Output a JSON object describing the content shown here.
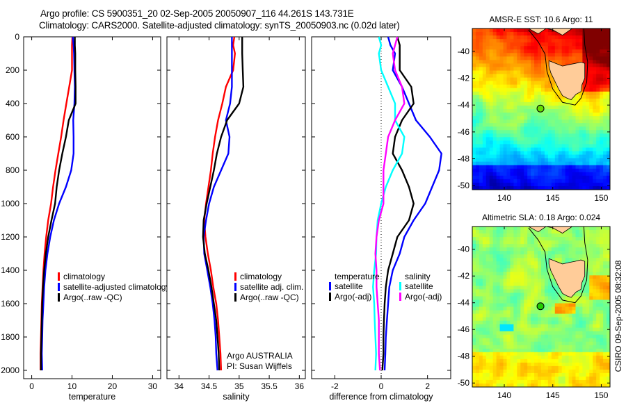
{
  "header": {
    "title_line1": "Argo profile: CS 5900351_20 02-Sep-2005 20050907_116 44.261S 143.731E",
    "title_line2": "Climatology: CARS2000. Satellite-adjusted climatology: synTS_20050903.nc (0.02d later)"
  },
  "side_stamp": "CSIRO 09-Sep-2005 08:32:08",
  "credit": {
    "line1": "Argo AUSTRALIA",
    "line2": "PI: Susan Wijffels"
  },
  "colors": {
    "climatology": "#ff0000",
    "satellite": "#0000ff",
    "argo": "#000000",
    "sal_satellite": "#00ffff",
    "sal_argo": "#ff00ff"
  },
  "chart_data": [
    {
      "type": "line",
      "id": "temperature",
      "title": "",
      "xlabel": "temperature",
      "ylabel": "",
      "xlim": [
        -2,
        32
      ],
      "ylim": [
        2050,
        0
      ],
      "xticks": [
        0,
        10,
        20,
        30
      ],
      "yticks": [
        0,
        200,
        400,
        600,
        800,
        1000,
        1200,
        1400,
        1600,
        1800,
        2000
      ],
      "legend": {
        "placement": "center-left",
        "entries": [
          "climatology",
          "satellite-adjusted climatology",
          "Argo(..raw -QC)"
        ]
      },
      "depth": [
        0,
        50,
        100,
        200,
        300,
        400,
        500,
        600,
        700,
        800,
        900,
        1000,
        1100,
        1200,
        1300,
        1400,
        1500,
        1600,
        1700,
        1800,
        1900,
        2000
      ],
      "series": [
        {
          "name": "climatology",
          "color": "red",
          "values": [
            10.1,
            10.0,
            10.0,
            10.0,
            9.3,
            8.6,
            7.9,
            7.3,
            6.6,
            5.9,
            5.3,
            4.8,
            4.1,
            3.6,
            3.2,
            2.9,
            2.7,
            2.5,
            2.4,
            2.3,
            2.2,
            2.2
          ]
        },
        {
          "name": "satellite",
          "color": "blue",
          "values": [
            10.2,
            10.4,
            10.5,
            10.6,
            10.7,
            10.6,
            10.3,
            10.4,
            10.4,
            9.8,
            8.5,
            6.8,
            5.5,
            4.6,
            3.9,
            3.4,
            3.1,
            2.9,
            2.7,
            2.6,
            2.5,
            2.6
          ]
        },
        {
          "name": "argo",
          "color": "black",
          "values": [
            10.7,
            10.7,
            10.8,
            10.8,
            10.9,
            10.9,
            9.2,
            8.5,
            7.6,
            6.8,
            6.2,
            5.8,
            4.9,
            4.1,
            3.5,
            3.1,
            2.8,
            2.6,
            2.5,
            2.4,
            2.3,
            2.3
          ]
        }
      ]
    },
    {
      "type": "line",
      "id": "salinity",
      "title": "",
      "xlabel": "salinity",
      "ylabel": "",
      "xlim": [
        33.8,
        36.1
      ],
      "ylim": [
        2050,
        0
      ],
      "xticks": [
        34,
        34.5,
        35,
        35.5,
        36
      ],
      "yticks": [
        0,
        200,
        400,
        600,
        800,
        1000,
        1200,
        1400,
        1600,
        1800,
        2000
      ],
      "legend": {
        "placement": "center-right",
        "entries": [
          "climatology",
          "satellite adj. clim.",
          "Argo(..raw -QC)"
        ]
      },
      "depth": [
        0,
        50,
        100,
        200,
        300,
        400,
        500,
        600,
        700,
        800,
        900,
        1000,
        1100,
        1200,
        1300,
        1400,
        1500,
        1600,
        1700,
        1800,
        1900,
        2000
      ],
      "series": [
        {
          "name": "climatology",
          "color": "red",
          "values": [
            34.92,
            34.9,
            34.93,
            34.9,
            34.78,
            34.72,
            34.65,
            34.6,
            34.56,
            34.53,
            34.49,
            34.45,
            34.42,
            34.44,
            34.48,
            34.53,
            34.57,
            34.62,
            34.65,
            34.67,
            34.69,
            34.7
          ]
        },
        {
          "name": "satellite",
          "color": "blue",
          "values": [
            34.88,
            34.88,
            34.88,
            34.88,
            34.88,
            34.85,
            34.78,
            34.84,
            34.82,
            34.7,
            34.58,
            34.5,
            34.45,
            34.41,
            34.42,
            34.47,
            34.52,
            34.56,
            34.59,
            34.61,
            34.62,
            34.64
          ]
        },
        {
          "name": "argo",
          "color": "black",
          "values": [
            35.05,
            35.05,
            35.05,
            35.06,
            35.07,
            35.0,
            34.8,
            34.7,
            34.63,
            34.58,
            34.52,
            34.46,
            34.41,
            34.4,
            34.43,
            34.49,
            34.54,
            34.58,
            34.62,
            34.64,
            34.66,
            34.67
          ]
        }
      ]
    },
    {
      "type": "line",
      "id": "difference",
      "title": "",
      "xlabel": "difference from climatology",
      "ylabel": "",
      "xlim": [
        -3,
        3
      ],
      "ylim": [
        2050,
        0
      ],
      "xticks": [
        -2,
        0,
        2
      ],
      "yticks": [
        0,
        200,
        400,
        600,
        800,
        1000,
        1200,
        1400,
        1600,
        1800,
        2000
      ],
      "zero_line": "dotted",
      "legend": {
        "placement": "center",
        "groups": [
          {
            "heading": "temperature",
            "entries": [
              "satellite",
              "Argo(-adj)"
            ]
          },
          {
            "heading": "salinity",
            "entries": [
              "satellite",
              "Argo(-adj)"
            ]
          }
        ]
      },
      "depth": [
        0,
        50,
        100,
        200,
        300,
        400,
        500,
        600,
        700,
        800,
        900,
        1000,
        1100,
        1200,
        1300,
        1400,
        1500,
        1600,
        1700,
        1800,
        1900,
        2000
      ],
      "series": [
        {
          "name": "temperature satellite",
          "color": "blue",
          "values": [
            0.3,
            0.4,
            0.6,
            0.5,
            0.9,
            1.2,
            1.5,
            2.1,
            2.6,
            2.5,
            2.2,
            1.9,
            1.4,
            1.0,
            0.8,
            0.5,
            0.35,
            0.3,
            0.25,
            0.2,
            0.18,
            0.15
          ]
        },
        {
          "name": "temperature Argo(-adj)",
          "color": "black",
          "values": [
            0.7,
            0.8,
            0.8,
            0.8,
            1.3,
            1.4,
            0.9,
            0.6,
            0.5,
            0.9,
            1.2,
            1.4,
            1.2,
            0.7,
            0.5,
            0.3,
            0.2,
            0.15,
            0.12,
            0.1,
            0.1,
            0.05
          ]
        },
        {
          "name": "salinity satellite",
          "color": "cyan",
          "values": [
            -0.1,
            0.0,
            -0.1,
            0.0,
            0.3,
            0.6,
            0.6,
            1.0,
            0.9,
            0.5,
            0.2,
            0.0,
            -0.15,
            -0.2,
            -0.22,
            -0.3,
            -0.35,
            -0.3,
            -0.28,
            -0.25,
            -0.22,
            -0.25
          ]
        },
        {
          "name": "salinity Argo(-adj)",
          "color": "magenta",
          "values": [
            0.7,
            0.6,
            0.5,
            0.6,
            0.9,
            1.0,
            0.6,
            0.3,
            0.2,
            0.1,
            0.1,
            0.1,
            -0.1,
            -0.2,
            -0.25,
            -0.2,
            -0.2,
            -0.15,
            -0.1,
            -0.1,
            -0.1,
            -0.05
          ]
        }
      ]
    },
    {
      "type": "heatmap",
      "id": "sst_map",
      "title": "AMSR-E SST: 10.6 Argo: 11",
      "xlim": [
        136.7,
        150.9
      ],
      "ylim": [
        -50.3,
        -38.3
      ],
      "xticks": [
        140,
        145,
        150
      ],
      "yticks": [
        -40,
        -42,
        -44,
        -46,
        -48,
        -50
      ],
      "argo_position": {
        "lon": 143.731,
        "lat": -44.261
      },
      "colormap": "jet",
      "description": "warm (orange/red) north-east, cooling to green mid-field and blue in south; Tasmania land mask"
    },
    {
      "type": "heatmap",
      "id": "sla_map",
      "title": "Altimetric SLA: 0.18 Argo: 0.024",
      "xlim": [
        136.7,
        150.9
      ],
      "ylim": [
        -50.3,
        -38.3
      ],
      "xticks": [
        140,
        145,
        150
      ],
      "yticks": [
        -40,
        -42,
        -44,
        -46,
        -48,
        -50
      ],
      "argo_position": {
        "lon": 143.731,
        "lat": -44.261
      },
      "colormap": "jet",
      "description": "mostly green with yellow/orange patches in south and east; Tasmania land mask"
    }
  ]
}
